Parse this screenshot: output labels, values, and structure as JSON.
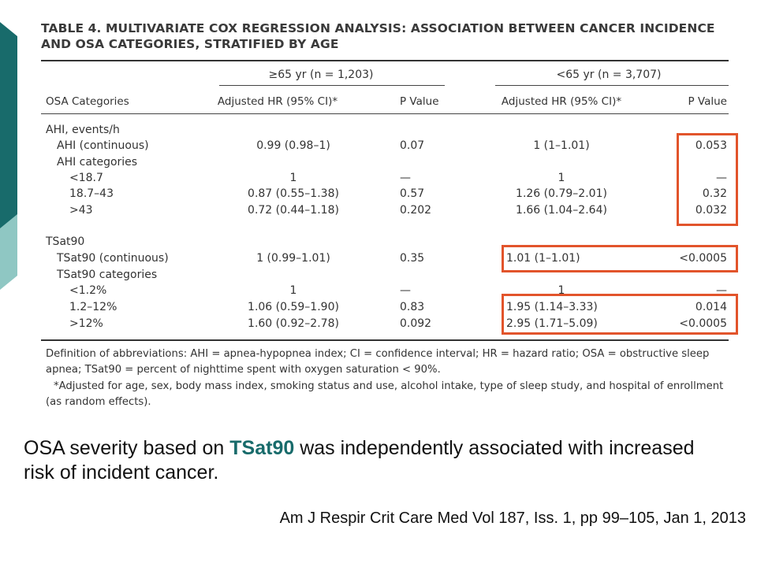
{
  "table": {
    "title_line1": "TABLE 4. MULTIVARIATE COX REGRESSION ANALYSIS: ASSOCIATION BETWEEN CANCER INCIDENCE",
    "title_line2": "AND OSA CATEGORIES, STRATIFIED BY AGE",
    "group_old": "≥65 yr (n = 1,203)",
    "group_young": "<65 yr (n = 3,707)",
    "col_label": "OSA Categories",
    "col_hr1": "Adjusted HR (95% CI)*",
    "col_p1": "P Value",
    "col_hr2": "Adjusted HR (95% CI)*",
    "col_p2": "P Value",
    "rows": [
      {
        "label": "AHI, events/h",
        "hr1": "",
        "p1": "",
        "hr2": "",
        "p2": ""
      },
      {
        "label": "AHI (continuous)",
        "hr1": "0.99 (0.98–1)",
        "p1": "0.07",
        "hr2": "1 (1–1.01)",
        "p2": "0.053"
      },
      {
        "label": "AHI categories",
        "hr1": "",
        "p1": "",
        "hr2": "",
        "p2": ""
      },
      {
        "label": "<18.7",
        "hr1": "1",
        "p1": "—",
        "hr2": "1",
        "p2": "—"
      },
      {
        "label": "18.7–43",
        "hr1": "0.87 (0.55–1.38)",
        "p1": "0.57",
        "hr2": "1.26 (0.79–2.01)",
        "p2": "0.32"
      },
      {
        "label": ">43",
        "hr1": "0.72 (0.44–1.18)",
        "p1": "0.202",
        "hr2": "1.66 (1.04–2.64)",
        "p2": "0.032"
      },
      {
        "label": "TSat90",
        "hr1": "",
        "p1": "",
        "hr2": "",
        "p2": ""
      },
      {
        "label": "TSat90 (continuous)",
        "hr1": "1 (0.99–1.01)",
        "p1": "0.35",
        "hr2": "1.01 (1–1.01)",
        "p2": "<0.0005"
      },
      {
        "label": "TSat90 categories",
        "hr1": "",
        "p1": "",
        "hr2": "",
        "p2": ""
      },
      {
        "label": "<1.2%",
        "hr1": "1",
        "p1": "—",
        "hr2": "1",
        "p2": "—"
      },
      {
        "label": "1.2–12%",
        "hr1": "1.06 (0.59–1.90)",
        "p1": "0.83",
        "hr2": "1.95 (1.14–3.33)",
        "p2": "0.014"
      },
      {
        "label": ">12%",
        "hr1": "1.60 (0.92–2.78)",
        "p1": "0.092",
        "hr2": "2.95 (1.71–5.09)",
        "p2": "<0.0005"
      }
    ],
    "footnote_abbrev": "Definition of abbreviations: AHI = apnea-hypopnea index; CI = confidence interval; HR = hazard ratio; OSA = obstructive sleep apnea; TSat90 = percent of nighttime spent with oxygen saturation < 90%.",
    "footnote_star": "*Adjusted for age, sex, body mass index, smoking status and use, alcohol intake, type of sleep study, and hospital of enrollment (as random effects)."
  },
  "summary": {
    "before": "OSA severity based on ",
    "highlight": "TSat90",
    "after": " was independently associated with increased risk of incident cancer."
  },
  "citation": "Am J Respir Crit Care Med Vol 187, Iss. 1, pp 99–105, Jan 1, 2013",
  "colors": {
    "accent_dark": "#186b6b",
    "accent_light": "#8fc7c3",
    "highlight_box": "#e2542b"
  }
}
